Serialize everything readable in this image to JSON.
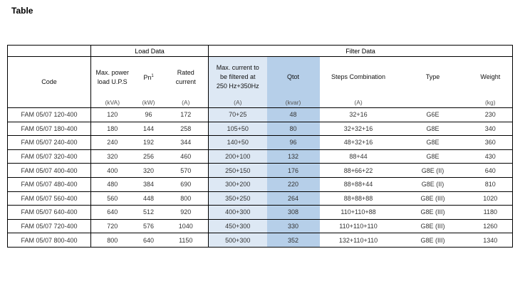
{
  "title": "Table",
  "groups": {
    "load": "Load Data",
    "filter": "Filter Data"
  },
  "headers": {
    "code": "Code",
    "max_power_line1": "Max. power",
    "max_power_line2": "load U.P.S",
    "pn": "Pn",
    "pn_sup": "1",
    "rated_line1": "Rated",
    "rated_line2": "current",
    "maxcur_line1": "Max. current to",
    "maxcur_line2": "be filtered at",
    "maxcur_line3": "250 Hz+350Hz",
    "qtot": "Qtot",
    "steps": "Steps Combination",
    "type": "Type",
    "weight": "Weight"
  },
  "units": {
    "max_power": "(kVA)",
    "pn": "(kW)",
    "rated": "(A)",
    "maxcur": "(A)",
    "qtot": "(kvar)",
    "steps": "(A)",
    "weight": "(kg)"
  },
  "rows": [
    {
      "code": "FAM 05/07 120-400",
      "power": "120",
      "pn": "96",
      "rated": "172",
      "maxcur": "70+25",
      "qtot": "48",
      "steps": "32+16",
      "type": "G6E",
      "weight": "230"
    },
    {
      "code": "FAM 05/07 180-400",
      "power": "180",
      "pn": "144",
      "rated": "258",
      "maxcur": "105+50",
      "qtot": "80",
      "steps": "32+32+16",
      "type": "G8E",
      "weight": "340"
    },
    {
      "code": "FAM 05/07 240-400",
      "power": "240",
      "pn": "192",
      "rated": "344",
      "maxcur": "140+50",
      "qtot": "96",
      "steps": "48+32+16",
      "type": "G8E",
      "weight": "360"
    },
    {
      "code": "FAM 05/07 320-400",
      "power": "320",
      "pn": "256",
      "rated": "460",
      "maxcur": "200+100",
      "qtot": "132",
      "steps": "88+44",
      "type": "G8E",
      "weight": "430"
    },
    {
      "code": "FAM 05/07 400-400",
      "power": "400",
      "pn": "320",
      "rated": "570",
      "maxcur": "250+150",
      "qtot": "176",
      "steps": "88+66+22",
      "type": "G8E (II)",
      "weight": "640"
    },
    {
      "code": "FAM 05/07 480-400",
      "power": "480",
      "pn": "384",
      "rated": "690",
      "maxcur": "300+200",
      "qtot": "220",
      "steps": "88+88+44",
      "type": "G8E (II)",
      "weight": "810"
    },
    {
      "code": "FAM 05/07 560-400",
      "power": "560",
      "pn": "448",
      "rated": "800",
      "maxcur": "350+250",
      "qtot": "264",
      "steps": "88+88+88",
      "type": "G8E (III)",
      "weight": "1020"
    },
    {
      "code": "FAM 05/07 640-400",
      "power": "640",
      "pn": "512",
      "rated": "920",
      "maxcur": "400+300",
      "qtot": "308",
      "steps": "110+110+88",
      "type": "G8E (III)",
      "weight": "1180"
    },
    {
      "code": "FAM 05/07 720-400",
      "power": "720",
      "pn": "576",
      "rated": "1040",
      "maxcur": "450+300",
      "qtot": "330",
      "steps": "110+110+110",
      "type": "G8E (III)",
      "weight": "1260"
    },
    {
      "code": "FAM 05/07 800-400",
      "power": "800",
      "pn": "640",
      "rated": "1150",
      "maxcur": "500+300",
      "qtot": "352",
      "steps": "132+110+110",
      "type": "G8E (III)",
      "weight": "1340"
    }
  ],
  "colors": {
    "filter_light": "#dde8f4",
    "qtot_highlight": "#b6cfe9"
  }
}
